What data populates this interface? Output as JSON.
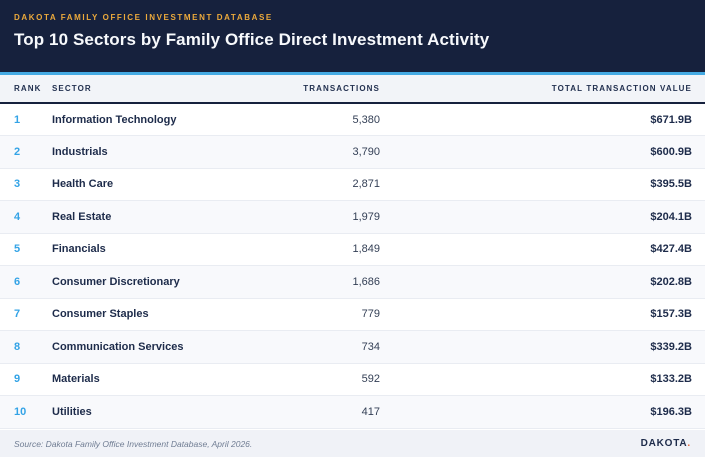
{
  "header": {
    "eyebrow": "DAKOTA FAMILY OFFICE INVESTMENT DATABASE",
    "title": "Top 10 Sectors by Family Office Direct Investment Activity"
  },
  "chart_data": {
    "type": "table",
    "title": "Top 10 Sectors by Family Office Direct Investment Activity",
    "columns": [
      "RANK",
      "SECTOR",
      "TRANSACTIONS",
      "TOTAL TRANSACTION VALUE"
    ],
    "rows": [
      {
        "rank": "1",
        "sector": "Information Technology",
        "transactions": "5,380",
        "total_transaction_value": "$671.9B"
      },
      {
        "rank": "2",
        "sector": "Industrials",
        "transactions": "3,790",
        "total_transaction_value": "$600.9B"
      },
      {
        "rank": "3",
        "sector": "Health Care",
        "transactions": "2,871",
        "total_transaction_value": "$395.5B"
      },
      {
        "rank": "4",
        "sector": "Real Estate",
        "transactions": "1,979",
        "total_transaction_value": "$204.1B"
      },
      {
        "rank": "5",
        "sector": "Financials",
        "transactions": "1,849",
        "total_transaction_value": "$427.4B"
      },
      {
        "rank": "6",
        "sector": "Consumer Discretionary",
        "transactions": "1,686",
        "total_transaction_value": "$202.8B"
      },
      {
        "rank": "7",
        "sector": "Consumer Staples",
        "transactions": "779",
        "total_transaction_value": "$157.3B"
      },
      {
        "rank": "8",
        "sector": "Communication Services",
        "transactions": "734",
        "total_transaction_value": "$339.2B"
      },
      {
        "rank": "9",
        "sector": "Materials",
        "transactions": "592",
        "total_transaction_value": "$133.2B"
      },
      {
        "rank": "10",
        "sector": "Utilities",
        "transactions": "417",
        "total_transaction_value": "$196.3B"
      }
    ]
  },
  "footer": {
    "source": "Source: Dakota Family Office Investment Database, April 2026.",
    "brand": "DAKOTA",
    "brand_dot": "."
  },
  "colors": {
    "banner_navy": "#16213d",
    "accent_blue": "#45aae3",
    "eyebrow_gold": "#ecaa3c",
    "rank_blue": "#33a3e6",
    "text_navy": "#1d2b4a",
    "row_alt": "#f8f9fc",
    "header_row_bg": "#f2f4f8",
    "footer_bg": "#f0f2f7",
    "brand_dot_orange": "#e2673c"
  }
}
